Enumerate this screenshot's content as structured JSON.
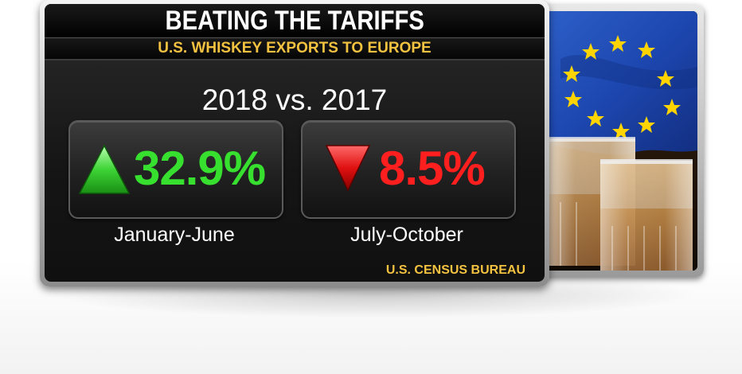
{
  "graphic": {
    "title": "BEATING THE TARIFFS",
    "subtitle": "U.S. WHISKEY EXPORTS TO EUROPE",
    "comparison": "2018 vs. 2017",
    "source": "U.S. CENSUS BUREAU"
  },
  "chart_data": {
    "type": "table",
    "title": "BEATING THE TARIFFS",
    "subtitle": "U.S. WHISKEY EXPORTS TO EUROPE",
    "comparison": "2018 vs. 2017",
    "categories": [
      "January-June",
      "July-October"
    ],
    "values": [
      32.9,
      -8.5
    ],
    "value_labels": [
      "32.9%",
      "8.5%"
    ],
    "directions": [
      "up",
      "down"
    ],
    "colors": [
      "#37e02f",
      "#ff1f1f"
    ],
    "source": "U.S. CENSUS BUREAU"
  },
  "icons": {
    "up": "triangle-up-icon",
    "down": "triangle-down-icon"
  },
  "colors": {
    "accent": "#f3c240",
    "positive": "#37e02f",
    "negative": "#ff1f1f",
    "panel": "#1a1a1a"
  }
}
